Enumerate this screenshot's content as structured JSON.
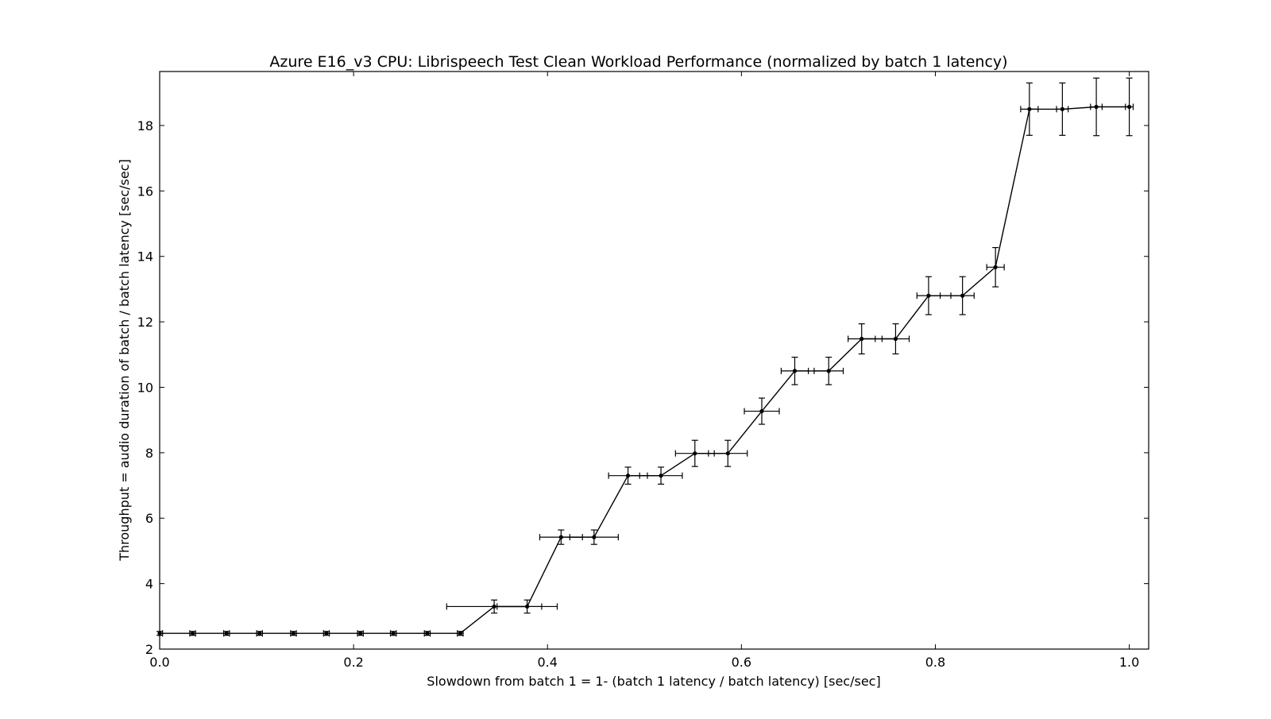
{
  "chart_data": {
    "type": "line",
    "title": "Azure E16_v3 CPU: Librispeech Test Clean Workload Performance (normalized by batch 1 latency)",
    "xlabel": "Slowdown from batch 1 = 1- (batch 1 latency / batch latency) [sec/sec]",
    "ylabel": "Throughput = audio duration of batch / batch latency [sec/sec]",
    "xlim": [
      0.0,
      1.02
    ],
    "ylim": [
      2.0,
      19.65
    ],
    "xticks": [
      0.0,
      0.2,
      0.4,
      0.6,
      0.8,
      1.0
    ],
    "xtick_labels": [
      "0.0",
      "0.2",
      "0.4",
      "0.6",
      "0.8",
      "1.0"
    ],
    "yticks": [
      2,
      4,
      6,
      8,
      10,
      12,
      14,
      16,
      18
    ],
    "ytick_labels": [
      "2",
      "4",
      "6",
      "8",
      "10",
      "12",
      "14",
      "16",
      "18"
    ],
    "grid": false,
    "color": "#000000",
    "series": [
      {
        "x": [
          0.0,
          0.034,
          0.069,
          0.103,
          0.138,
          0.172,
          0.207,
          0.241,
          0.276,
          0.31,
          0.345,
          0.379,
          0.414,
          0.448,
          0.483,
          0.517,
          0.552,
          0.586,
          0.621,
          0.655,
          0.69,
          0.724,
          0.759,
          0.793,
          0.828,
          0.862,
          0.897,
          0.931,
          0.966,
          1.0
        ],
        "y": [
          2.48,
          2.48,
          2.48,
          2.48,
          2.48,
          2.48,
          2.48,
          2.48,
          2.48,
          2.48,
          3.3,
          3.3,
          5.42,
          5.42,
          7.3,
          7.3,
          7.98,
          7.98,
          9.27,
          10.5,
          10.5,
          11.48,
          11.48,
          12.8,
          12.8,
          13.67,
          18.5,
          18.5,
          18.57,
          18.57
        ],
        "xerr": [
          0.003,
          0.003,
          0.003,
          0.003,
          0.003,
          0.003,
          0.003,
          0.003,
          0.003,
          0.003,
          0.049,
          0.031,
          0.022,
          0.025,
          0.02,
          0.022,
          0.02,
          0.02,
          0.018,
          0.014,
          0.015,
          0.014,
          0.014,
          0.012,
          0.012,
          0.009,
          0.009,
          0.006,
          0.006,
          0.004
        ],
        "yerr": [
          0.06,
          0.06,
          0.06,
          0.06,
          0.06,
          0.06,
          0.06,
          0.06,
          0.06,
          0.06,
          0.2,
          0.2,
          0.22,
          0.22,
          0.26,
          0.26,
          0.4,
          0.4,
          0.4,
          0.42,
          0.42,
          0.46,
          0.46,
          0.58,
          0.58,
          0.6,
          0.8,
          0.8,
          0.88,
          0.88
        ]
      }
    ]
  }
}
